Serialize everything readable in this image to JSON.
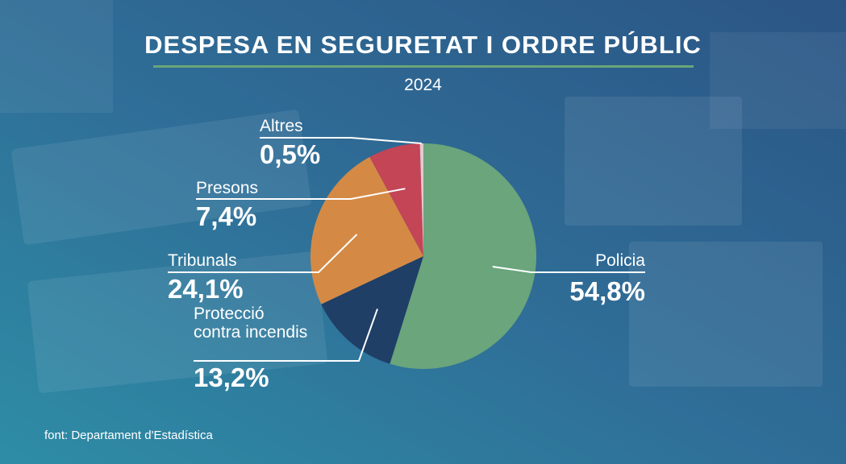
{
  "header": {
    "title": "DESPESA EN SEGURETAT I ORDRE PÚBLIC",
    "subtitle": "2024"
  },
  "footer": {
    "source": "font: Departament d'Estadística"
  },
  "colors": {
    "background": "#2d5d86",
    "accent_rule": "#6aa57a",
    "text": "#ffffff"
  },
  "chart_data": {
    "type": "pie",
    "title": "DESPESA EN SEGURETAT I ORDRE PÚBLIC",
    "subtitle": "2024",
    "legend": "none",
    "slices": [
      {
        "label": "Policia",
        "value": 54.8,
        "value_label": "54,8%",
        "color": "#6aa57c"
      },
      {
        "label": "Protecció contra incendis",
        "label_lines": [
          "Protecció",
          "contra incendis"
        ],
        "value": 13.2,
        "value_label": "13,2%",
        "color": "#1f3f66"
      },
      {
        "label": "Tribunals",
        "value": 24.1,
        "value_label": "24,1%",
        "color": "#d48a45"
      },
      {
        "label": "Presons",
        "value": 7.4,
        "value_label": "7,4%",
        "color": "#c34556"
      },
      {
        "label": "Altres",
        "value": 0.5,
        "value_label": "0,5%",
        "color": "#e3c8cf"
      }
    ]
  }
}
